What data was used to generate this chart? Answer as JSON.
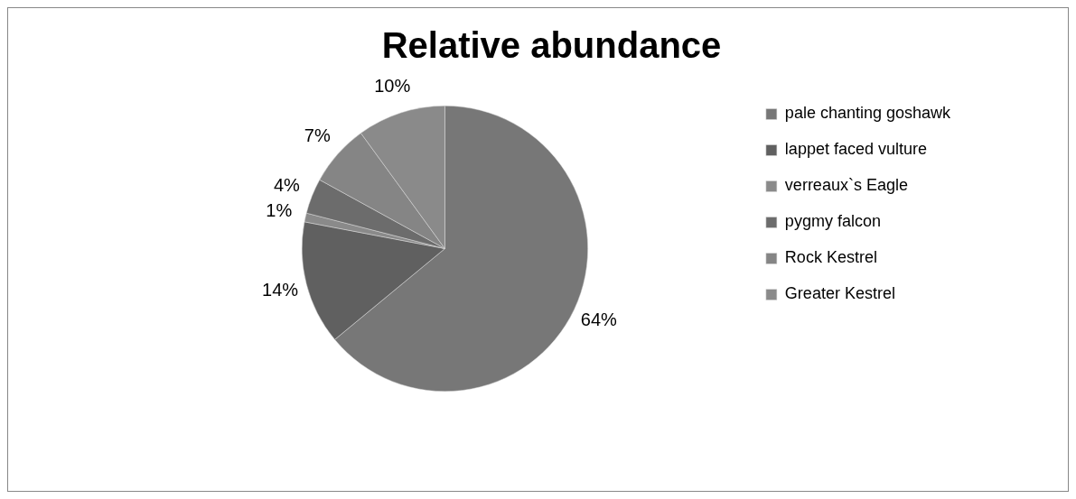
{
  "chart_data": {
    "type": "pie",
    "title": "Relative abundance",
    "categories": [
      "pale chanting goshawk",
      "lappet faced vulture",
      "verreaux`s Eagle",
      "pygmy falcon",
      "Rock Kestrel",
      "Greater Kestrel"
    ],
    "values": [
      64,
      14,
      1,
      4,
      7,
      10
    ],
    "colors": [
      "#777777",
      "#606060",
      "#8a8a8a",
      "#6c6c6c",
      "#858585",
      "#8a8a8a"
    ],
    "value_labels": [
      "64%",
      "14%",
      "1%",
      "4%",
      "7%",
      "10%"
    ],
    "legend": "right"
  }
}
